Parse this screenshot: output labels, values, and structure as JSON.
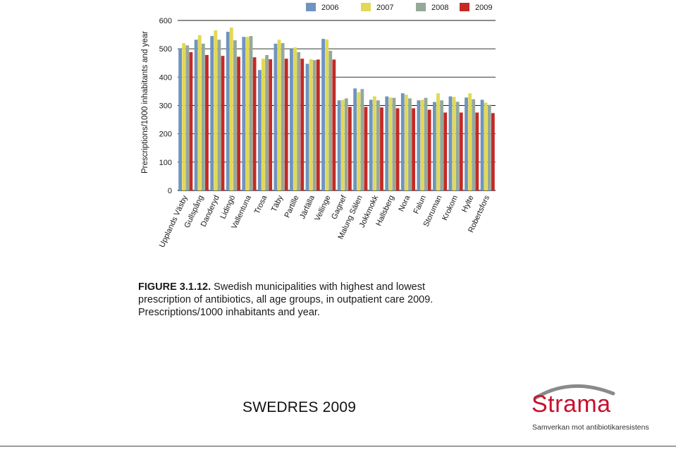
{
  "colors": {
    "series": [
      "#6f94c0",
      "#e2d855",
      "#95a89a",
      "#c42a25"
    ],
    "grid": "#1a1a1a",
    "logo_red": "#c8102e",
    "logo_arc": "#8a8a8a"
  },
  "chart_data": {
    "type": "bar",
    "ylabel": "Prescriptions/1000 inhabitants and year",
    "xlabel": "",
    "ylim": [
      0,
      600
    ],
    "yticks": [
      0,
      100,
      200,
      300,
      400,
      500,
      600
    ],
    "grid": true,
    "legend_position": "top-right",
    "categories": [
      "Upplands Väsby",
      "Gullspång",
      "Danderyd",
      "Lidingö",
      "Vallentuna",
      "Trosa",
      "Täby",
      "Partille",
      "Järfälla",
      "Vellinge",
      "Gagnef",
      "Malung Sälen",
      "Jokkmokk",
      "Hallsberg",
      "Nora",
      "Falun",
      "Storuman",
      "Krokom",
      "Hylte",
      "Robertsfors"
    ],
    "series": [
      {
        "name": "2006",
        "values": [
          502,
          532,
          545,
          560,
          542,
          425,
          518,
          500,
          447,
          535,
          318,
          360,
          320,
          332,
          343,
          318,
          312,
          332,
          328,
          320
        ]
      },
      {
        "name": "2007",
        "values": [
          520,
          548,
          565,
          575,
          542,
          465,
          532,
          505,
          463,
          533,
          320,
          347,
          332,
          328,
          338,
          320,
          343,
          330,
          343,
          310
        ]
      },
      {
        "name": "2008",
        "values": [
          512,
          518,
          532,
          530,
          545,
          478,
          520,
          488,
          460,
          493,
          325,
          358,
          318,
          327,
          325,
          327,
          318,
          313,
          322,
          302
        ]
      },
      {
        "name": "2009",
        "values": [
          488,
          478,
          475,
          472,
          470,
          463,
          465,
          465,
          462,
          462,
          295,
          295,
          293,
          290,
          290,
          285,
          275,
          275,
          275,
          273
        ]
      }
    ]
  },
  "caption": {
    "label": "FIGURE 3.1.12.",
    "text": " Swedish municipalities with highest and lowest prescription of antibiotics, all age groups, in outpatient care 2009. Prescriptions/1000 inhabitants and year."
  },
  "footer": {
    "title": "SWEDRES 2009",
    "logo_text": "Strama",
    "logo_tagline": "Samverkan mot antibiotikaresistens"
  }
}
